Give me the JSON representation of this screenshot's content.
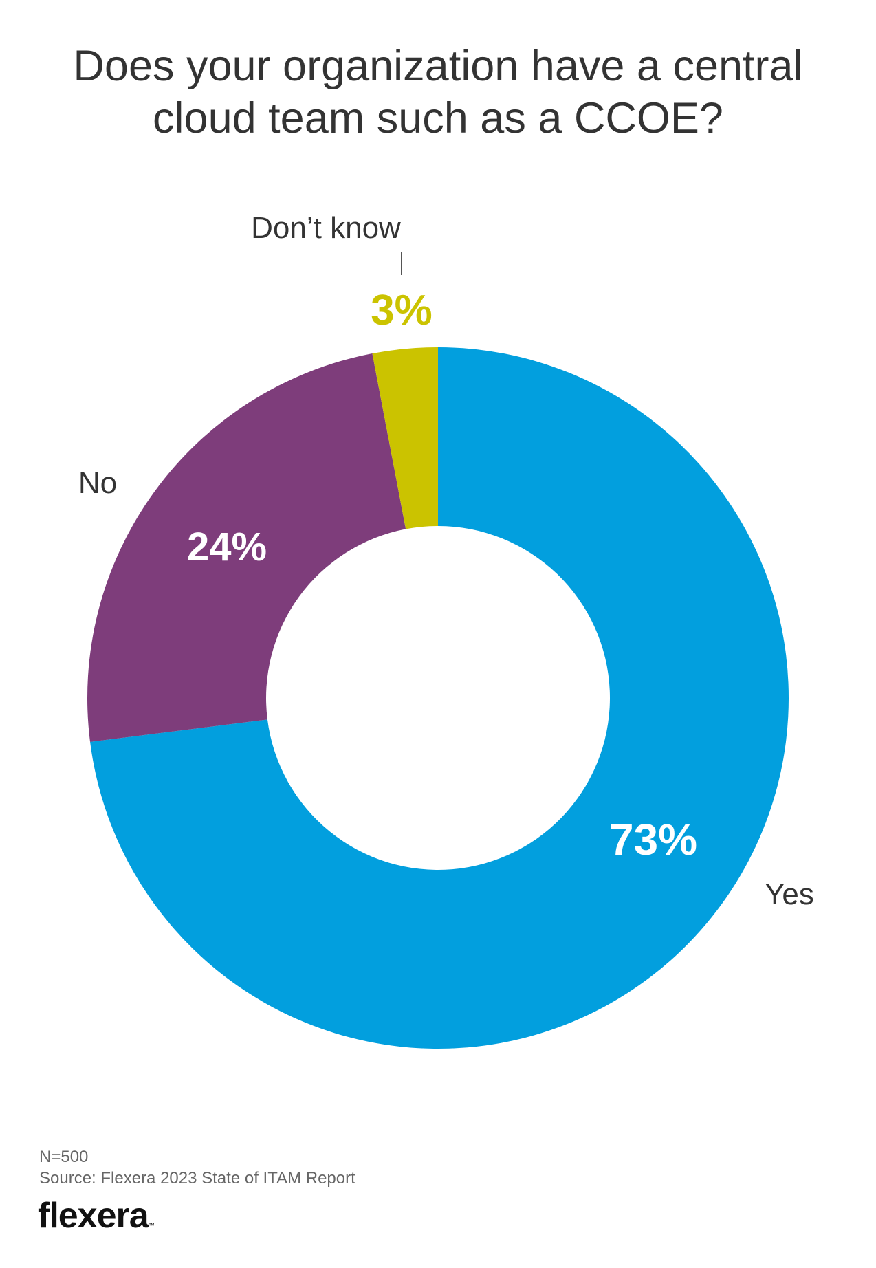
{
  "title_lines": [
    "Does your organization have a central",
    "cloud team such as a CCOE?"
  ],
  "chart_data": {
    "type": "pie",
    "donut": true,
    "title": "Does your organization have a central cloud team such as a CCOE?",
    "categories": [
      "Yes",
      "No",
      "Don’t know"
    ],
    "values": [
      73,
      24,
      3
    ],
    "value_labels": [
      "73%",
      "24%",
      "3%"
    ],
    "colors": [
      "#029FDE",
      "#7E3D7B",
      "#CBC300"
    ],
    "legend": "none"
  },
  "footer": {
    "n": "N=500",
    "source": "Source: Flexera 2023 State of ITAM Report"
  },
  "logo": {
    "text": "flexera",
    "tm": "™"
  }
}
